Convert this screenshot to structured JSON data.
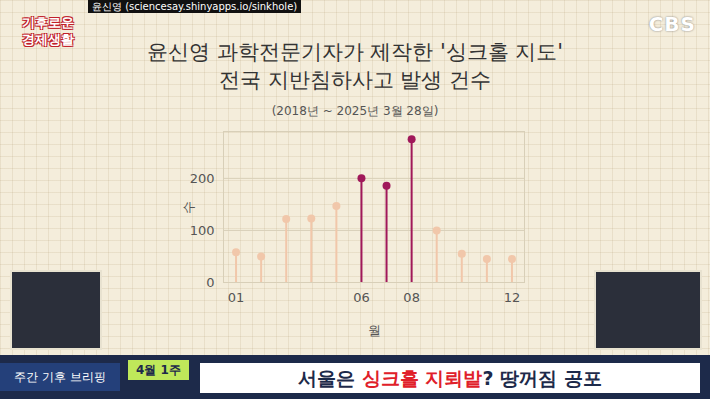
{
  "chart_data": {
    "type": "lollipop",
    "title": "윤신영 과학전문기자가 제작한 '싱크홀 지도'\n전국 지반침하사고 발생 건수",
    "subtitle": "(2018년 ~ 2025년 3월 28일)",
    "x_label": "월",
    "y_label": "수",
    "x": [
      1,
      2,
      3,
      4,
      5,
      6,
      7,
      8,
      9,
      10,
      11,
      12
    ],
    "values": [
      58,
      50,
      122,
      123,
      147,
      200,
      186,
      275,
      100,
      55,
      45,
      45
    ],
    "colors": [
      "#f1c7aa",
      "#f1c7aa",
      "#f1c7aa",
      "#f1c7aa",
      "#f1c7aa",
      "#a0185a",
      "#a0185a",
      "#a0185a",
      "#f1c7aa",
      "#f1c7aa",
      "#f1c7aa",
      "#f1c7aa"
    ],
    "marker": "circle",
    "xlim": [
      0.5,
      12.5
    ],
    "xticks": [
      {
        "value": 1,
        "label": "01"
      },
      {
        "value": 6,
        "label": "06"
      },
      {
        "value": 8,
        "label": "08"
      },
      {
        "value": 12,
        "label": "12"
      }
    ],
    "ylim": [
      0,
      290
    ],
    "yticks": [
      0,
      100,
      200
    ],
    "grid": true
  },
  "overlay": {
    "source_caption": "윤신영 (sciencesay.shinyapps.io/sinkhole)",
    "program_logo": [
      "기후로운",
      "경제생활"
    ],
    "broadcaster": "CBS",
    "segment": "주간 기후 브리핑",
    "week": "4월 1주",
    "headline": {
      "before": "서울은 ",
      "highlight": "싱크홀 지뢰밭",
      "after": "? 땅꺼짐 공포"
    }
  }
}
